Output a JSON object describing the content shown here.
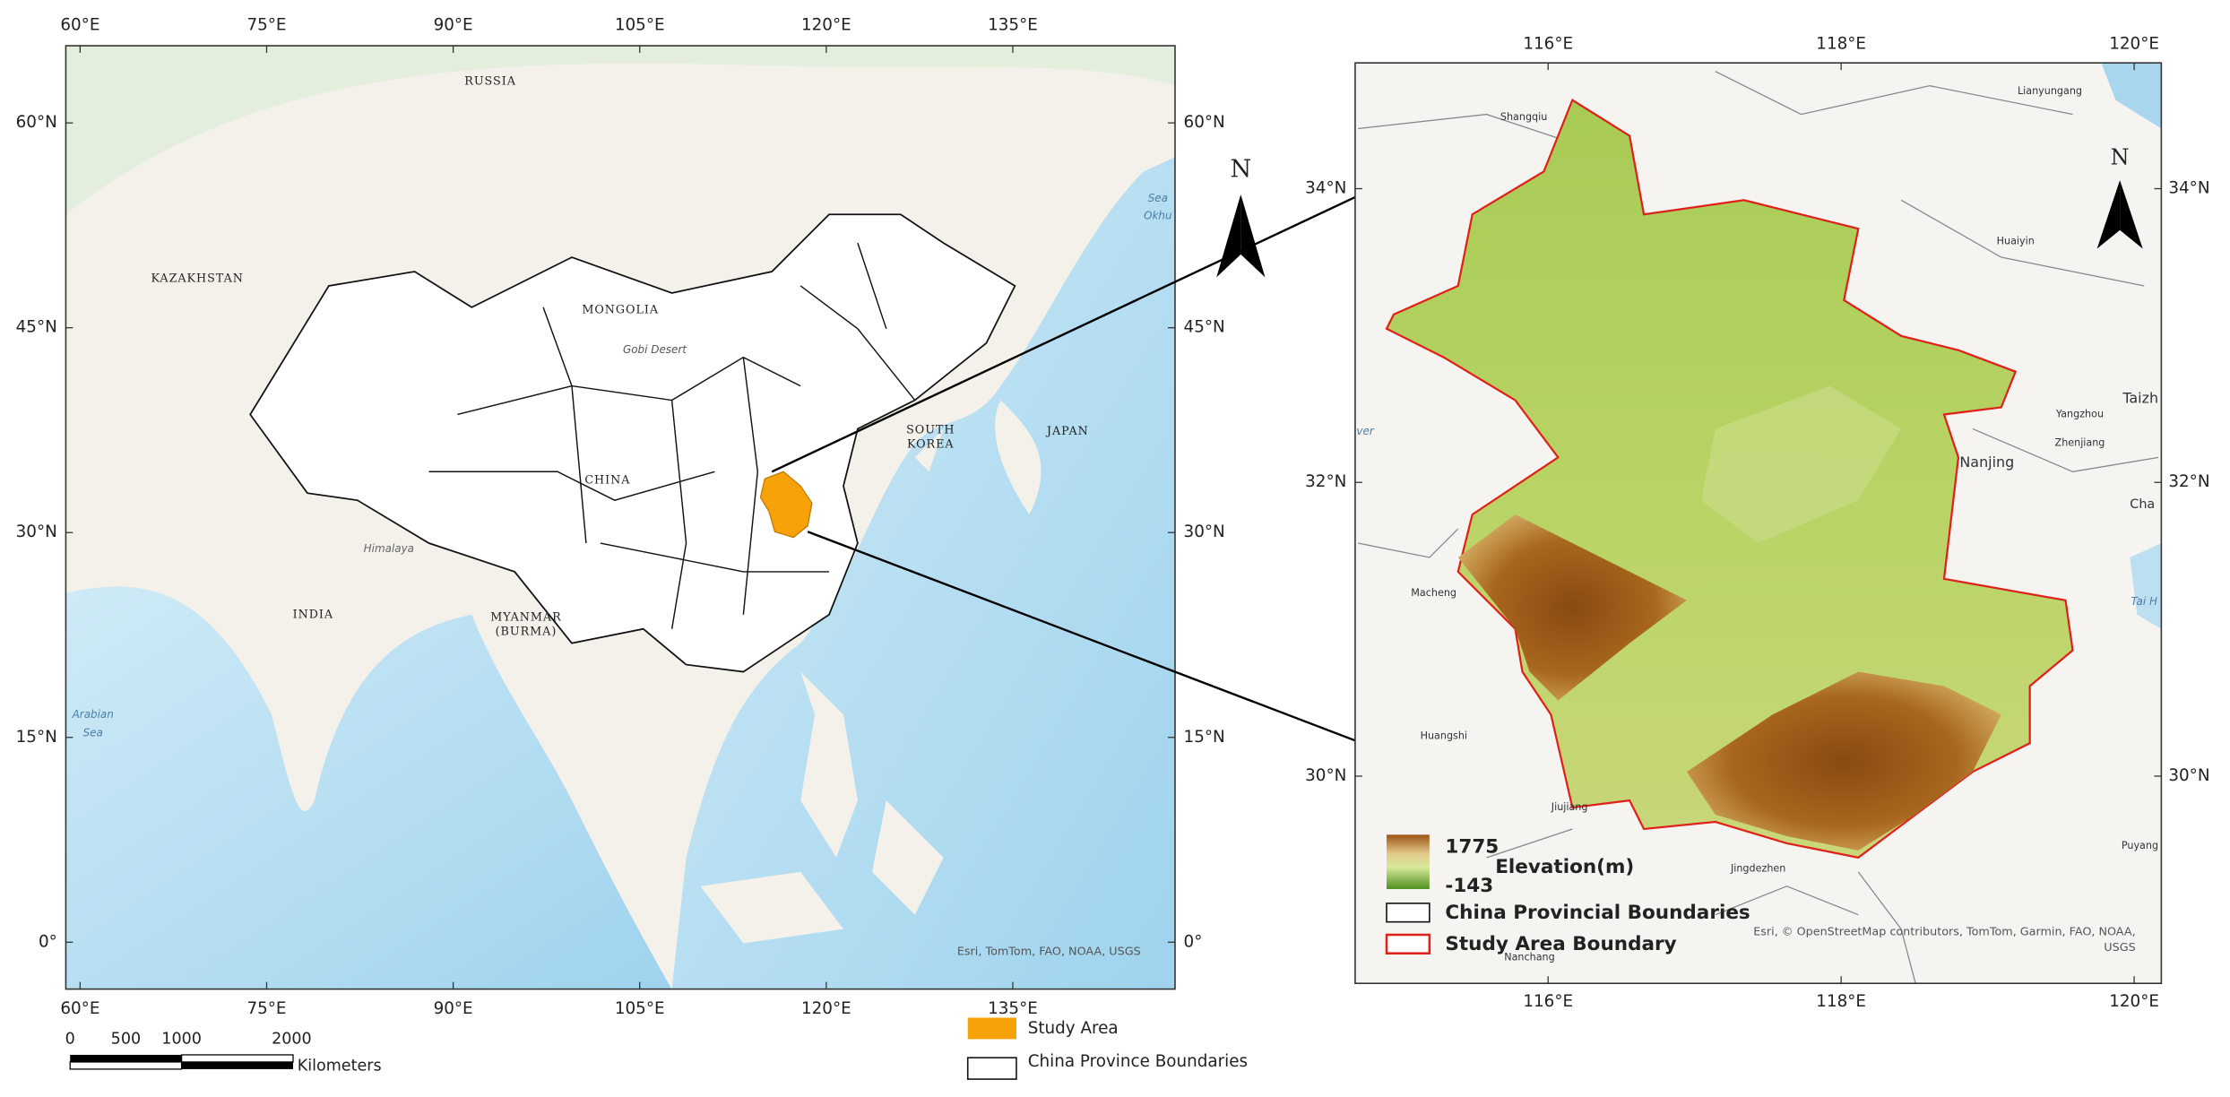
{
  "left_map": {
    "top_ticks": [
      "60°E",
      "75°E",
      "90°E",
      "105°E",
      "120°E",
      "135°E"
    ],
    "bottom_ticks": [
      "60°E",
      "75°E",
      "90°E",
      "105°E",
      "120°E",
      "135°E"
    ],
    "left_ticks": [
      "60°N",
      "45°N",
      "30°N",
      "15°N",
      "0°"
    ],
    "right_ticks": [
      "60°N",
      "45°N",
      "30°N",
      "15°N",
      "0°"
    ],
    "countries": [
      "RUSSIA",
      "KAZAKHSTAN",
      "MONGOLIA",
      "CHINA",
      "INDIA",
      "MYANMAR",
      "(BURMA)",
      "SOUTH",
      "KOREA",
      "JAPAN"
    ],
    "features": [
      "Gobi Desert",
      "Himalaya",
      "Arabian",
      "Sea",
      "Sea",
      "Okhu"
    ],
    "attribution": "Esri, TomTom, FAO, NOAA, USGS",
    "scale_bar": {
      "labels": [
        0,
        500,
        1000,
        2000
      ],
      "unit": "Kilometers"
    },
    "legend": [
      "Study Area",
      "China Province Boundaries"
    ],
    "north": "N"
  },
  "right_map": {
    "top_ticks": [
      "116°E",
      "118°E",
      "120°E"
    ],
    "bottom_ticks": [
      "116°E",
      "118°E",
      "120°E"
    ],
    "left_ticks": [
      "34°N",
      "32°N",
      "30°N"
    ],
    "right_ticks": [
      "34°N",
      "32°N",
      "30°N"
    ],
    "cities": [
      "Shangqiu",
      "Lianyungang",
      "Huaiyin",
      "Taizh",
      "Yangzhou",
      "Zhenjiang",
      "Nanjing",
      "Cha",
      "Macheng",
      "Huangshi",
      "Jiujiang",
      "Jingdezhen",
      "Nanchang",
      "Puyang",
      "ver",
      "Tai H"
    ],
    "north": "N",
    "attribution": [
      "Esri, © OpenStreetMap contributors, TomTom, Garmin, FAO, NOAA,",
      "USGS"
    ],
    "legend": {
      "elevation_max": 1775,
      "elevation_min": -143,
      "elevation_title": "Elevation(m)",
      "boundaries": "China Provincial Boundaries",
      "study_area": "Study Area Boundary"
    }
  }
}
